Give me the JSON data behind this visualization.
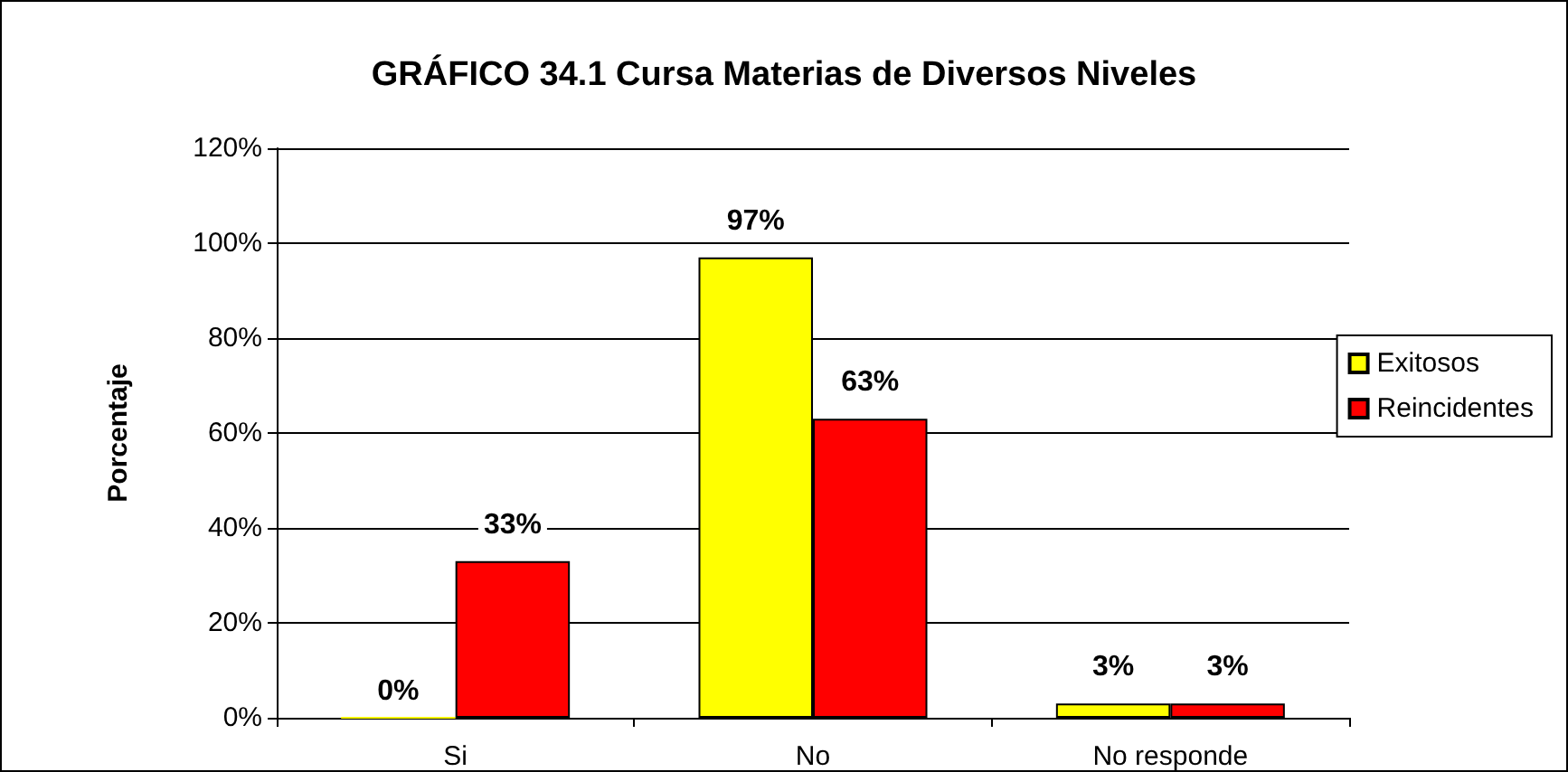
{
  "chart_data": {
    "type": "bar",
    "title": "GRÁFICO 34.1 Cursa Materias de Diversos Niveles",
    "ylabel": "Porcentaje",
    "categories": [
      "Si",
      "No",
      "No responde"
    ],
    "series": [
      {
        "name": "Exitosos",
        "color": "#ffff00",
        "values": [
          0,
          97,
          3
        ],
        "value_labels": [
          "0%",
          "97%",
          "3%"
        ]
      },
      {
        "name": "Reincidentes",
        "color": "#ff0000",
        "values": [
          33,
          63,
          3
        ],
        "value_labels": [
          "33%",
          "63%",
          "3%"
        ]
      }
    ],
    "ylim": [
      0,
      120
    ],
    "yticks": [
      {
        "value": 0,
        "label": "0%"
      },
      {
        "value": 20,
        "label": "20%"
      },
      {
        "value": 40,
        "label": "40%"
      },
      {
        "value": 60,
        "label": "60%"
      },
      {
        "value": 80,
        "label": "80%"
      },
      {
        "value": 100,
        "label": "100%"
      },
      {
        "value": 120,
        "label": "120%"
      }
    ],
    "grid": "y",
    "legend": "right"
  }
}
